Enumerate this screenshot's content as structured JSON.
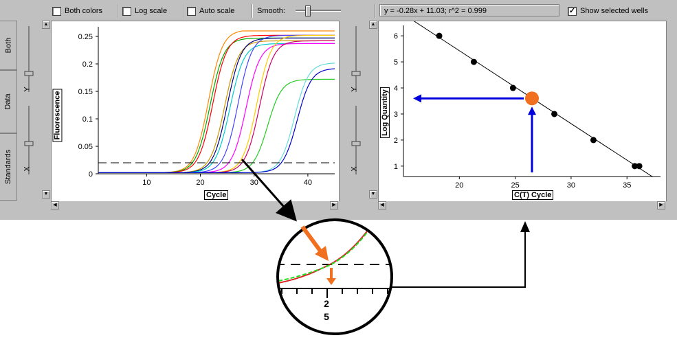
{
  "side_tabs": [
    "Both",
    "Data",
    "Standards"
  ],
  "slider_labels": {
    "y": "Y",
    "x": "X"
  },
  "toolbar": {
    "both_colors": "Both colors",
    "log_scale": "Log scale",
    "auto_scale": "Auto scale",
    "smooth": "Smooth:",
    "equation": "y = -0.28x + 11.03;  r^2 = 0.999",
    "show_selected": "Show selected wells",
    "show_selected_checked": true
  },
  "colors": {
    "marker": "#f07020",
    "arrow_blue": "#0000dd",
    "arrow_orange": "#f07020"
  },
  "chart_data": [
    {
      "type": "line",
      "xlabel": "Cycle",
      "ylabel": "Fluorescence",
      "xlim": [
        1,
        45
      ],
      "ylim": [
        0,
        0.26
      ],
      "xticks": [
        10,
        20,
        30,
        40
      ],
      "yticks": [
        0,
        0.05,
        0.1,
        0.15,
        0.2,
        0.25
      ],
      "threshold": 0.02,
      "series": [
        {
          "color": "#ff8800",
          "midpoint": 21.5,
          "plateau": 0.26
        },
        {
          "color": "#00aa00",
          "midpoint": 21.8,
          "plateau": 0.245
        },
        {
          "color": "#ff0000",
          "midpoint": 22.3,
          "plateau": 0.25
        },
        {
          "color": "#cc9900",
          "midpoint": 24.5,
          "plateau": 0.24
        },
        {
          "color": "#000080",
          "midpoint": 25.0,
          "plateau": 0.245
        },
        {
          "color": "#00cccc",
          "midpoint": 25.5,
          "plateau": 0.235
        },
        {
          "color": "#4444ff",
          "midpoint": 27.0,
          "plateau": 0.25
        },
        {
          "color": "#ff00ff",
          "midpoint": 28.5,
          "plateau": 0.235
        },
        {
          "color": "#ffcc00",
          "midpoint": 30.5,
          "plateau": 0.25
        },
        {
          "color": "#cc0066",
          "midpoint": 31.0,
          "plateau": 0.24
        },
        {
          "color": "#22cc22",
          "midpoint": 32.5,
          "plateau": 0.17
        },
        {
          "color": "#66dddd",
          "midpoint": 37.5,
          "plateau": 0.2
        },
        {
          "color": "#0000cc",
          "midpoint": 38.0,
          "plateau": 0.19
        }
      ]
    },
    {
      "type": "scatter",
      "xlabel": "C(T) Cycle",
      "ylabel": "Log Quantity",
      "xlim": [
        15,
        38
      ],
      "ylim": [
        0.6,
        6.4
      ],
      "xticks": [
        20,
        25,
        30,
        35
      ],
      "yticks": [
        1,
        2,
        3,
        4,
        5,
        6
      ],
      "fit": {
        "slope": -0.28,
        "intercept": 11.03
      },
      "points": [
        {
          "x": 18.2,
          "y": 6.0
        },
        {
          "x": 21.3,
          "y": 5.0
        },
        {
          "x": 24.8,
          "y": 4.0
        },
        {
          "x": 28.5,
          "y": 3.0
        },
        {
          "x": 32.0,
          "y": 2.0
        },
        {
          "x": 35.7,
          "y": 1.0
        },
        {
          "x": 36.1,
          "y": 1.0
        }
      ],
      "highlight": {
        "x": 26.5,
        "y": 3.6
      }
    }
  ],
  "zoom": {
    "tick_label_line1": "2",
    "tick_label_line2": "5"
  }
}
